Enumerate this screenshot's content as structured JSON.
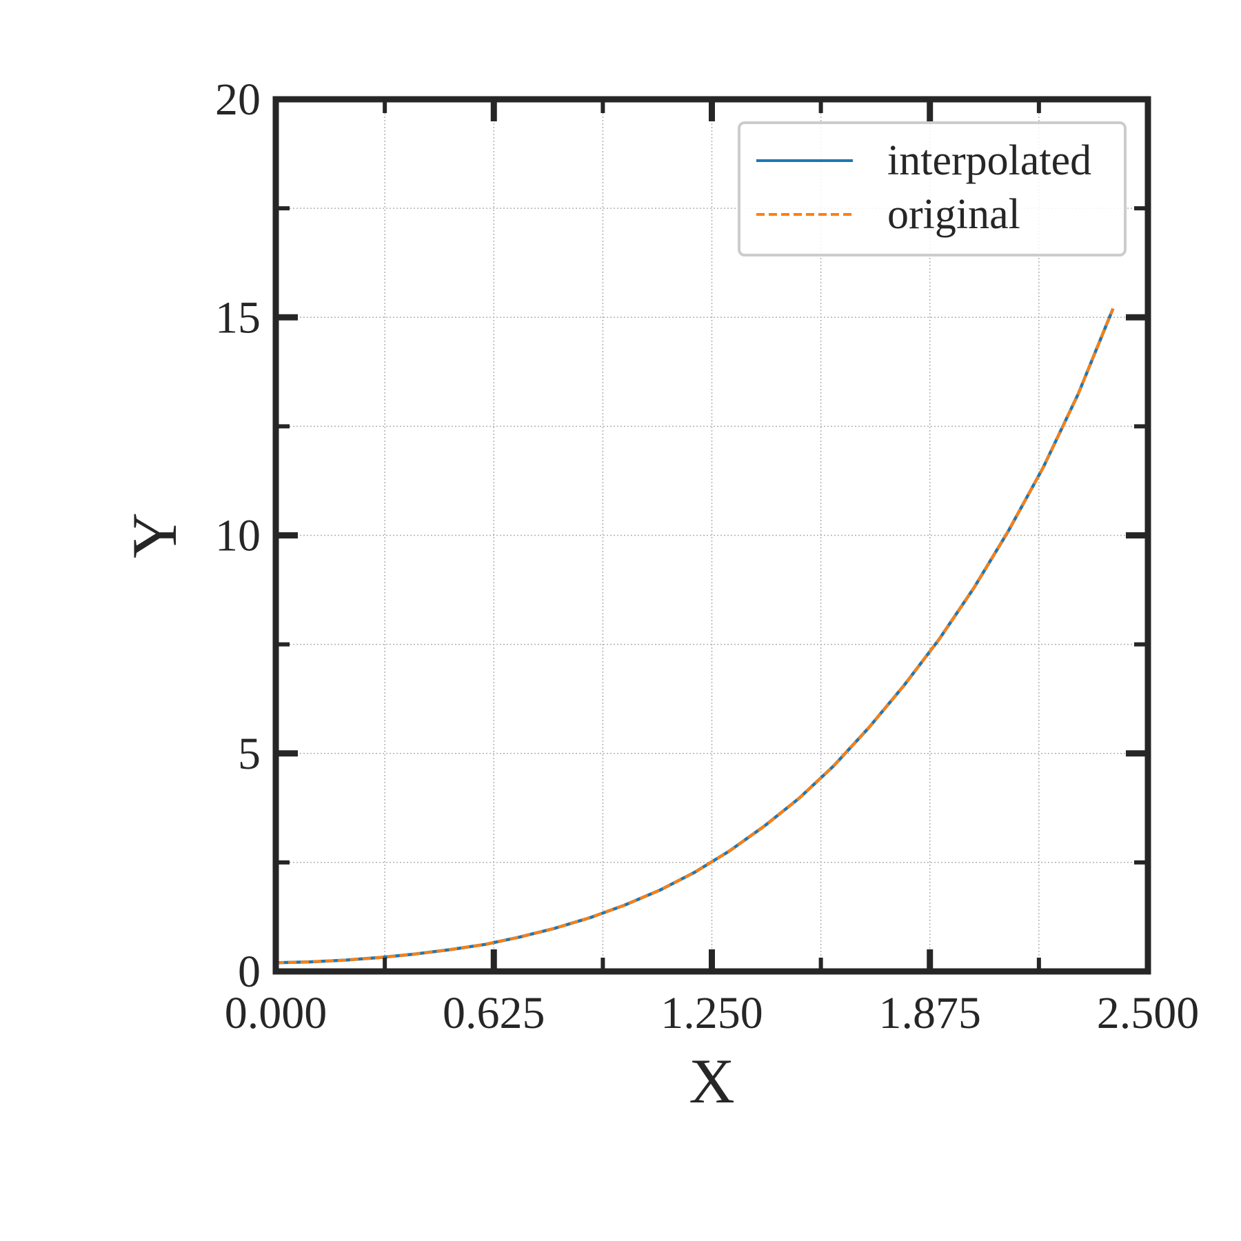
{
  "chart_data": {
    "type": "line",
    "xlabel": "X",
    "ylabel": "Y",
    "xlim": [
      0,
      2.5
    ],
    "ylim": [
      0,
      20
    ],
    "xticks": [
      "0.000",
      "0.625",
      "1.250",
      "1.875",
      "2.500"
    ],
    "yticks": [
      "0",
      "5",
      "10",
      "15",
      "20"
    ],
    "grid": true,
    "legend_position": "top-right",
    "series": [
      {
        "name": "interpolated",
        "color": "#1f77b4",
        "style": "solid",
        "x": [
          0.0,
          0.1,
          0.2,
          0.3,
          0.4,
          0.5,
          0.6,
          0.7,
          0.8,
          0.9,
          1.0,
          1.1,
          1.2,
          1.3,
          1.4,
          1.5,
          1.6,
          1.7,
          1.8,
          1.9,
          2.0,
          2.1,
          2.2,
          2.3,
          2.4
        ],
        "y": [
          0.2,
          0.22,
          0.26,
          0.32,
          0.4,
          0.5,
          0.62,
          0.79,
          0.99,
          1.23,
          1.52,
          1.86,
          2.27,
          2.76,
          3.33,
          3.97,
          4.72,
          5.59,
          6.55,
          7.6,
          8.78,
          10.1,
          11.56,
          13.24,
          15.2
        ]
      },
      {
        "name": "original",
        "color": "#ff7f0e",
        "style": "dashed",
        "x": [
          0.0,
          0.1,
          0.2,
          0.3,
          0.4,
          0.5,
          0.6,
          0.7,
          0.8,
          0.9,
          1.0,
          1.1,
          1.2,
          1.3,
          1.4,
          1.5,
          1.6,
          1.7,
          1.8,
          1.9,
          2.0,
          2.1,
          2.2,
          2.3,
          2.4
        ],
        "y": [
          0.2,
          0.22,
          0.26,
          0.32,
          0.4,
          0.5,
          0.62,
          0.79,
          0.99,
          1.23,
          1.52,
          1.86,
          2.27,
          2.76,
          3.33,
          3.97,
          4.72,
          5.59,
          6.55,
          7.6,
          8.78,
          10.1,
          11.56,
          13.24,
          15.2
        ]
      }
    ]
  }
}
